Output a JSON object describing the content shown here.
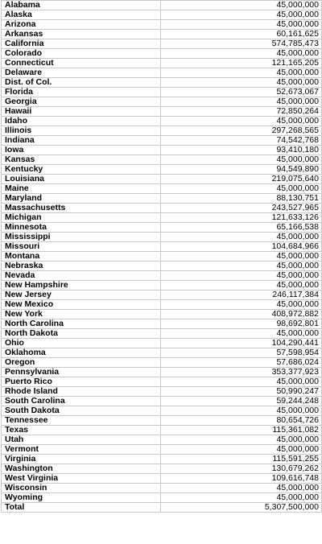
{
  "table": {
    "rows": [
      {
        "state": "Alabama",
        "amount": "45,000,000"
      },
      {
        "state": "Alaska",
        "amount": "45,000,000"
      },
      {
        "state": "Arizona",
        "amount": "45,000,000"
      },
      {
        "state": "Arkansas",
        "amount": "60,161,625"
      },
      {
        "state": "California",
        "amount": "574,785,473"
      },
      {
        "state": "Colorado",
        "amount": "45,000,000"
      },
      {
        "state": "Connecticut",
        "amount": "121,165,205"
      },
      {
        "state": "Delaware",
        "amount": "45,000,000"
      },
      {
        "state": "Dist. of Col.",
        "amount": "45,000,000"
      },
      {
        "state": "Florida",
        "amount": "52,673,067"
      },
      {
        "state": "Georgia",
        "amount": "45,000,000"
      },
      {
        "state": "Hawaii",
        "amount": "72,850,264"
      },
      {
        "state": "Idaho",
        "amount": "45,000,000"
      },
      {
        "state": "Illinois",
        "amount": "297,268,565"
      },
      {
        "state": "Indiana",
        "amount": "74,542,768"
      },
      {
        "state": "Iowa",
        "amount": "93,410,180"
      },
      {
        "state": "Kansas",
        "amount": "45,000,000"
      },
      {
        "state": "Kentucky",
        "amount": "94,549,890"
      },
      {
        "state": "Louisiana",
        "amount": "219,075,640"
      },
      {
        "state": "Maine",
        "amount": "45,000,000"
      },
      {
        "state": "Maryland",
        "amount": "88,130,751"
      },
      {
        "state": "Massachusetts",
        "amount": "243,527,965"
      },
      {
        "state": "Michigan",
        "amount": "121,633,126"
      },
      {
        "state": "Minnesota",
        "amount": "65,166,538"
      },
      {
        "state": "Mississippi",
        "amount": "45,000,000"
      },
      {
        "state": "Missouri",
        "amount": "104,684,966"
      },
      {
        "state": "Montana",
        "amount": "45,000,000"
      },
      {
        "state": "Nebraska",
        "amount": "45,000,000"
      },
      {
        "state": "Nevada",
        "amount": "45,000,000"
      },
      {
        "state": "New Hampshire",
        "amount": "45,000,000"
      },
      {
        "state": "New Jersey",
        "amount": "246,117,384"
      },
      {
        "state": "New Mexico",
        "amount": "45,000,000"
      },
      {
        "state": "New York",
        "amount": "408,972,882"
      },
      {
        "state": "North Carolina",
        "amount": "98,692,801"
      },
      {
        "state": "North Dakota",
        "amount": "45,000,000"
      },
      {
        "state": "Ohio",
        "amount": "104,290,441"
      },
      {
        "state": "Oklahoma",
        "amount": "57,598,954"
      },
      {
        "state": "Oregon",
        "amount": "57,686,024"
      },
      {
        "state": "Pennsylvania",
        "amount": "353,377,923"
      },
      {
        "state": "Puerto Rico",
        "amount": "45,000,000"
      },
      {
        "state": "Rhode Island",
        "amount": "50,990,247"
      },
      {
        "state": "South Carolina",
        "amount": "59,244,248"
      },
      {
        "state": "South Dakota",
        "amount": "45,000,000"
      },
      {
        "state": "Tennessee",
        "amount": "80,654,726"
      },
      {
        "state": "Texas",
        "amount": "115,361,082"
      },
      {
        "state": "Utah",
        "amount": "45,000,000"
      },
      {
        "state": "Vermont",
        "amount": "45,000,000"
      },
      {
        "state": "Virginia",
        "amount": "115,591,255"
      },
      {
        "state": "Washington",
        "amount": "130,679,262"
      },
      {
        "state": "West Virginia",
        "amount": "109,616,748"
      },
      {
        "state": "Wisconsin",
        "amount": "45,000,000"
      },
      {
        "state": "Wyoming",
        "amount": "45,000,000"
      }
    ],
    "total": {
      "state": "Total",
      "amount": "5,307,500,000"
    }
  }
}
